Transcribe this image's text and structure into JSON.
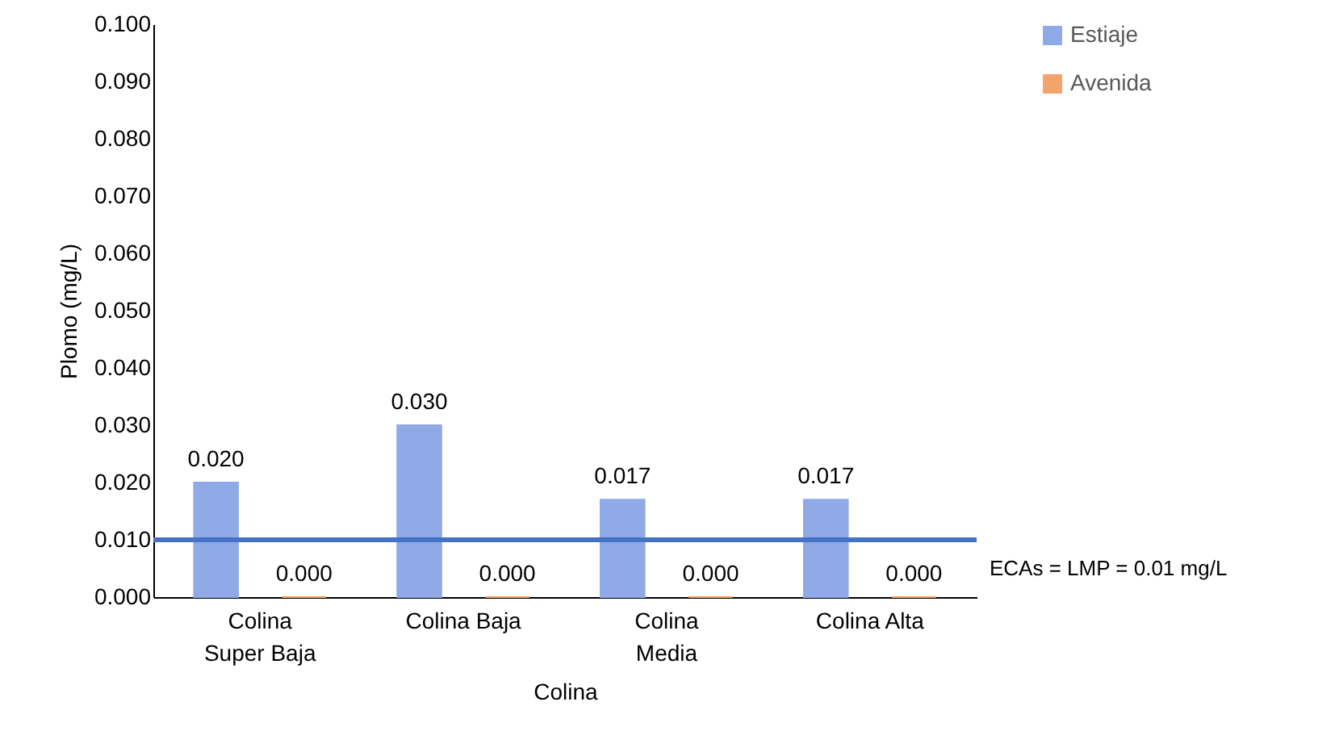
{
  "chart_data": {
    "type": "bar",
    "xlabel": "Colina",
    "ylabel": "Plomo (mg/L)",
    "categories": [
      "Colina Super Baja",
      "Colina Baja",
      "Colina Media",
      "Colina Alta"
    ],
    "series": [
      {
        "name": "Estiaje",
        "color": "#8faae6",
        "values": [
          0.02,
          0.03,
          0.017,
          0.017
        ],
        "value_labels": [
          "0.020",
          "0.030",
          "0.017",
          "0.017"
        ]
      },
      {
        "name": "Avenida",
        "color": "#f4a46a",
        "values": [
          0,
          0,
          0,
          0
        ],
        "value_labels": [
          "0.000",
          "0.000",
          "0.000",
          "0.000"
        ]
      }
    ],
    "ylim": [
      0,
      0.1
    ],
    "yticks": [
      {
        "value": 0,
        "label": "0.000"
      },
      {
        "value": 0.01,
        "label": "0.010"
      },
      {
        "value": 0.02,
        "label": "0.020"
      },
      {
        "value": 0.03,
        "label": "0.030"
      },
      {
        "value": 0.04,
        "label": "0.040"
      },
      {
        "value": 0.05,
        "label": "0.050"
      },
      {
        "value": 0.06,
        "label": "0.060"
      },
      {
        "value": 0.07,
        "label": "0.070"
      },
      {
        "value": 0.08,
        "label": "0.080"
      },
      {
        "value": 0.09,
        "label": "0.090"
      },
      {
        "value": 0.1,
        "label": "0.100"
      }
    ],
    "ref_lines": [
      {
        "axis": "y",
        "value": 0.01,
        "label": "ECAs = LMP = 0.01 mg/L",
        "color": "#4472c4"
      }
    ],
    "grid": false,
    "legend": "right"
  }
}
